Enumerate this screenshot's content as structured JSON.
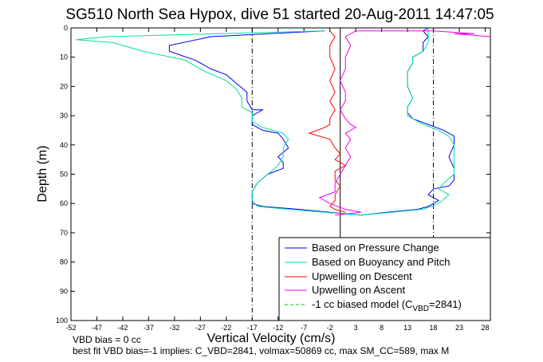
{
  "chart_data": {
    "type": "line",
    "title": "SG510 North Sea Hypox, dive 51 started 20-Aug-2011 14:47:05",
    "xlabel": "Vertical Velocity (cm/s)",
    "ylabel": "Depth (m)",
    "xlim": [
      -52,
      29
    ],
    "ylim": [
      0,
      100
    ],
    "y_reversed": true,
    "xticks": [
      -52,
      -47,
      -42,
      -37,
      -32,
      -27,
      -22,
      -17,
      -12,
      -7,
      -2,
      3,
      8,
      13,
      18,
      23,
      28
    ],
    "yticks": [
      0,
      10,
      20,
      30,
      40,
      50,
      60,
      70,
      80,
      90,
      100
    ],
    "reference_lines": [
      {
        "x": -17,
        "style": "dash-dot",
        "color": "#000000"
      },
      {
        "x": 18,
        "style": "dash-dot",
        "color": "#000000"
      },
      {
        "x": 0,
        "style": "solid",
        "color": "#000000"
      }
    ],
    "legend_position": "bottom-right",
    "series": [
      {
        "name": "Based on Pressure Change",
        "color": "#0000ff",
        "points": [
          [
            -3,
            1
          ],
          [
            -25,
            3
          ],
          [
            -33,
            6
          ],
          [
            -33,
            8
          ],
          [
            -28,
            11
          ],
          [
            -25,
            14
          ],
          [
            -22,
            16
          ],
          [
            -20,
            19
          ],
          [
            -18,
            22
          ],
          [
            -18,
            25
          ],
          [
            -17,
            28
          ],
          [
            -15,
            28
          ],
          [
            -17,
            30
          ],
          [
            -17,
            33
          ],
          [
            -15,
            35
          ],
          [
            -12,
            36
          ],
          [
            -11,
            38
          ],
          [
            -10,
            41
          ],
          [
            -12,
            44
          ],
          [
            -11,
            46
          ],
          [
            -11,
            48
          ],
          [
            -14,
            50
          ],
          [
            -16,
            53
          ],
          [
            -17,
            56
          ],
          [
            -17,
            58
          ],
          [
            -17,
            60
          ],
          [
            -15,
            61
          ],
          [
            -8,
            62
          ],
          [
            -2,
            63
          ],
          [
            4,
            64
          ],
          [
            9,
            63
          ],
          [
            15,
            62
          ],
          [
            17,
            61
          ],
          [
            19,
            59
          ],
          [
            17,
            57
          ],
          [
            18,
            55
          ],
          [
            21,
            54
          ],
          [
            22,
            52
          ],
          [
            22,
            48
          ],
          [
            21,
            44
          ],
          [
            22,
            40
          ],
          [
            22,
            37
          ],
          [
            20,
            35
          ],
          [
            17,
            33
          ],
          [
            14,
            31
          ],
          [
            13,
            29
          ],
          [
            13,
            27
          ],
          [
            14,
            24
          ],
          [
            13,
            20
          ],
          [
            13,
            15
          ],
          [
            14,
            12
          ],
          [
            14,
            10
          ],
          [
            16,
            8
          ],
          [
            16,
            5
          ],
          [
            17,
            3
          ],
          [
            16,
            1
          ],
          [
            17,
            0
          ]
        ]
      },
      {
        "name": "Based on Buoyancy and Pitch",
        "color": "#00e0a0",
        "points": [
          [
            -3,
            1
          ],
          [
            -45,
            3
          ],
          [
            -51,
            4
          ],
          [
            -44,
            5
          ],
          [
            -42,
            6
          ],
          [
            -38,
            8
          ],
          [
            -30,
            11
          ],
          [
            -26,
            15
          ],
          [
            -22,
            18
          ],
          [
            -20,
            21
          ],
          [
            -19,
            24
          ],
          [
            -19,
            27
          ],
          [
            -17,
            29
          ],
          [
            -17,
            32
          ],
          [
            -15,
            34
          ],
          [
            -11,
            36
          ],
          [
            -10,
            38
          ],
          [
            -11,
            41
          ],
          [
            -11,
            44
          ],
          [
            -12,
            47
          ],
          [
            -14,
            50
          ],
          [
            -16,
            53
          ],
          [
            -17,
            56
          ],
          [
            -17,
            59
          ],
          [
            -16,
            61
          ],
          [
            -10,
            62
          ],
          [
            -3,
            63
          ],
          [
            4,
            64
          ],
          [
            10,
            63
          ],
          [
            16,
            62
          ],
          [
            19,
            60
          ],
          [
            21,
            57
          ],
          [
            19,
            55
          ],
          [
            20,
            53
          ],
          [
            22,
            50
          ],
          [
            22,
            45
          ],
          [
            22,
            40
          ],
          [
            21,
            37
          ],
          [
            19,
            35
          ],
          [
            16,
            33
          ],
          [
            13,
            30
          ],
          [
            13,
            27
          ],
          [
            14,
            24
          ],
          [
            13,
            20
          ],
          [
            13,
            15
          ],
          [
            14,
            12
          ],
          [
            14,
            10
          ],
          [
            16,
            8
          ],
          [
            17,
            5
          ],
          [
            17,
            2
          ],
          [
            17,
            0
          ]
        ]
      },
      {
        "name": "Upwelling on Descent",
        "color": "#ff0000",
        "points": [
          [
            -2,
            1
          ],
          [
            -1,
            3
          ],
          [
            -2,
            6
          ],
          [
            -2,
            10
          ],
          [
            -1,
            14
          ],
          [
            -2,
            18
          ],
          [
            -1,
            22
          ],
          [
            -2,
            25
          ],
          [
            -1,
            28
          ],
          [
            -2,
            31
          ],
          [
            -2,
            33
          ],
          [
            -3,
            34
          ],
          [
            -6,
            36
          ],
          [
            -2,
            38
          ],
          [
            -1,
            41
          ],
          [
            0,
            43
          ],
          [
            -1,
            45
          ],
          [
            1,
            47
          ],
          [
            -1,
            49
          ],
          [
            -1,
            52
          ],
          [
            0,
            54
          ],
          [
            -1,
            57
          ],
          [
            -1,
            59
          ],
          [
            -2,
            61
          ],
          [
            -1,
            62
          ],
          [
            1,
            63
          ]
        ]
      },
      {
        "name": "Upwelling on Ascent",
        "color": "#ee00ee",
        "points": [
          [
            29,
            3
          ],
          [
            22,
            2
          ],
          [
            26,
            2
          ],
          [
            18,
            1
          ],
          [
            3,
            1
          ],
          [
            1,
            3
          ],
          [
            2,
            6
          ],
          [
            1,
            10
          ],
          [
            1,
            14
          ],
          [
            0,
            18
          ],
          [
            1,
            22
          ],
          [
            1,
            25
          ],
          [
            0,
            28
          ],
          [
            1,
            31
          ],
          [
            2,
            33
          ],
          [
            3,
            34
          ],
          [
            1,
            36
          ],
          [
            2,
            38
          ],
          [
            1,
            41
          ],
          [
            2,
            44
          ],
          [
            1,
            47
          ],
          [
            0,
            50
          ],
          [
            -1,
            53
          ],
          [
            -1,
            56
          ],
          [
            -4,
            58
          ],
          [
            -2,
            60
          ],
          [
            1,
            62
          ],
          [
            4,
            63
          ],
          [
            -1,
            64
          ]
        ]
      },
      {
        "name": "-1 cc biased model (C_VBD=2841)",
        "color": "#00c800",
        "dashed": true,
        "points": []
      }
    ],
    "legend": [
      "Based on Pressure Change",
      "Based on Buoyancy and Pitch",
      "Upwelling on Descent",
      "Upwelling on Ascent"
    ],
    "legend_last": {
      "prefix": "-1 cc biased model (C",
      "sub": "VBD",
      "suffix": "=2841)"
    },
    "footnotes": {
      "line1": "VBD bias = 0 cc",
      "line2": "best fit VBD bias=-1 implies: C_VBD=2841, volmax=50869 cc, max SM_CC=589, max M"
    }
  }
}
